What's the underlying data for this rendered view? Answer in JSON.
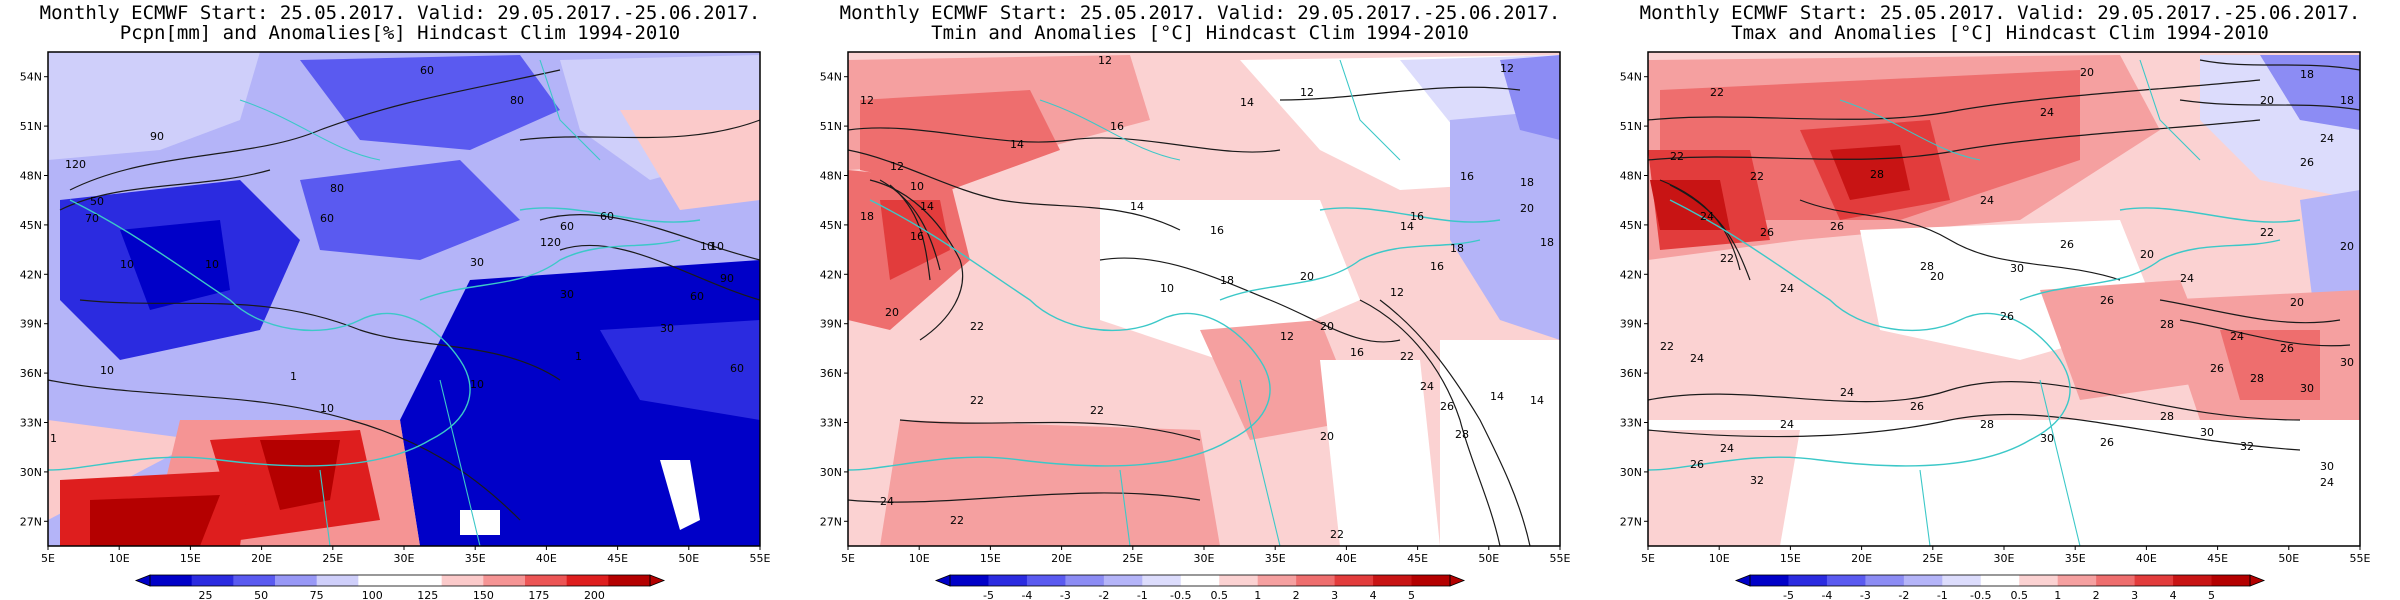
{
  "panels": [
    {
      "id": "pcpn",
      "title_line1": "Monthly ECMWF Start: 25.05.2017. Valid: 29.05.2017.-25.06.2017.",
      "title_line2": "Pcpn[mm] and Anomalies[%] Hindcast Clim 1994-2010",
      "contour_labels": [
        "60",
        "80",
        "90",
        "120",
        "50",
        "60",
        "80",
        "70",
        "10",
        "30",
        "60",
        "10",
        "30",
        "10",
        "60",
        "90",
        "120",
        "60",
        "30",
        "10",
        "60",
        "10",
        "1",
        "10",
        "1",
        "1",
        "10"
      ],
      "colorbar": {
        "labels": [
          "25",
          "50",
          "75",
          "100",
          "125",
          "150",
          "175",
          "200"
        ],
        "colors": [
          "#0000c8",
          "#2b2be0",
          "#5a5af0",
          "#9898f6",
          "#cfcffa",
          "#ffffff",
          "#ffffff",
          "#fbcaca",
          "#f59494",
          "#ec5555",
          "#de1e1e",
          "#b40000"
        ]
      }
    },
    {
      "id": "tmin",
      "title_line1": "Monthly ECMWF Start: 25.05.2017. Valid: 29.05.2017.-25.06.2017.",
      "title_line2": "Tmin and Anomalies [°C] Hindcast Clim 1994-2010",
      "contour_labels": [
        "12",
        "12",
        "12",
        "14",
        "12",
        "14",
        "16",
        "14",
        "16",
        "18",
        "20",
        "12",
        "10",
        "14",
        "16",
        "18",
        "20",
        "10",
        "12",
        "22",
        "20",
        "16",
        "22",
        "22",
        "22",
        "24",
        "26",
        "28",
        "20",
        "22",
        "24",
        "22",
        "14",
        "16",
        "18",
        "16",
        "20",
        "18",
        "12",
        "14",
        "16",
        "18",
        "14"
      ],
      "colorbar": {
        "labels": [
          "-5",
          "-4",
          "-3",
          "-2",
          "-1",
          "-0.5",
          "0.5",
          "1",
          "2",
          "3",
          "4",
          "5"
        ],
        "colors": [
          "#0000c8",
          "#2b2be0",
          "#5a5af0",
          "#8c8cf4",
          "#b4b4f8",
          "#dcdcfc",
          "#ffffff",
          "#fbd2d2",
          "#f5a0a0",
          "#ee6e6e",
          "#e23c3c",
          "#c81414",
          "#b40000"
        ]
      }
    },
    {
      "id": "tmax",
      "title_line1": "Monthly ECMWF Start: 25.05.2017. Valid: 29.05.2017.-25.06.2017.",
      "title_line2": "Tmax and Anomalies [°C] Hindcast Clim 1994-2010",
      "contour_labels": [
        "22",
        "20",
        "18",
        "24",
        "22",
        "20",
        "24",
        "26",
        "28",
        "22",
        "24",
        "26",
        "20",
        "24",
        "26",
        "28",
        "30",
        "26",
        "24",
        "22",
        "20",
        "24",
        "26",
        "28",
        "20",
        "24",
        "26",
        "30",
        "22",
        "24",
        "26",
        "28",
        "30",
        "24",
        "26",
        "28",
        "30",
        "24",
        "26",
        "28",
        "30",
        "32",
        "24",
        "26",
        "20",
        "22",
        "26",
        "30",
        "32",
        "18",
        "24"
      ],
      "colorbar": {
        "labels": [
          "-5",
          "-4",
          "-3",
          "-2",
          "-1",
          "-0.5",
          "0.5",
          "1",
          "2",
          "3",
          "4",
          "5"
        ],
        "colors": [
          "#0000c8",
          "#2b2be0",
          "#5a5af0",
          "#8c8cf4",
          "#b4b4f8",
          "#dcdcfc",
          "#ffffff",
          "#fbd2d2",
          "#f5a0a0",
          "#ee6e6e",
          "#e23c3c",
          "#c81414",
          "#b40000"
        ]
      }
    }
  ],
  "axes": {
    "lat_labels": [
      "54N",
      "51N",
      "48N",
      "45N",
      "42N",
      "39N",
      "36N",
      "33N",
      "30N",
      "27N"
    ],
    "lon_labels": [
      "5E",
      "10E",
      "15E",
      "20E",
      "25E",
      "30E",
      "35E",
      "40E",
      "45E",
      "50E",
      "55E"
    ]
  },
  "colors": {
    "coastline": "#3cc8c8",
    "contour": "#1a1a1a",
    "frame": "#000000"
  }
}
